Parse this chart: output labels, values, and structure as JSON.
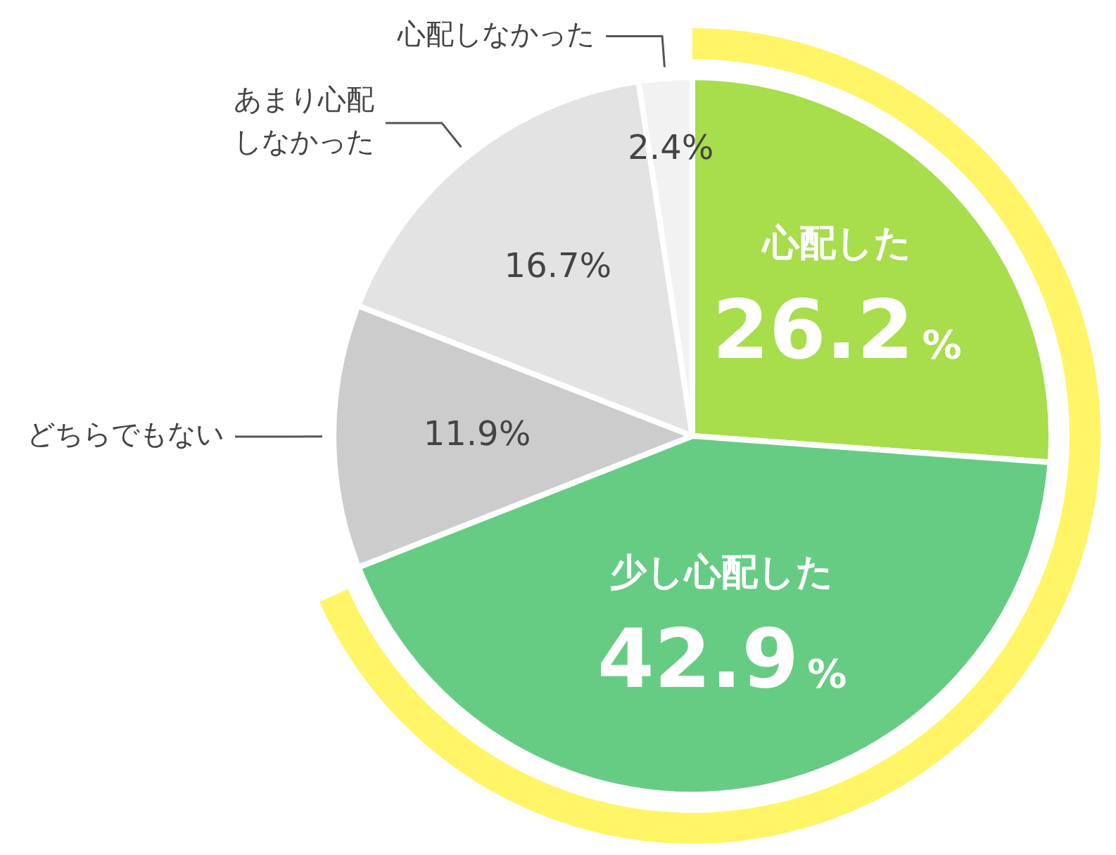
{
  "chart_data": {
    "type": "pie",
    "categories": [
      "心配した",
      "少し心配した",
      "どちらでもない",
      "あまり心配しなかった",
      "心配しなかった"
    ],
    "value_labels": [
      "26.2%",
      "42.9%",
      "11.9%",
      "16.7%",
      "2.4%"
    ],
    "values": [
      26.2,
      42.9,
      11.9,
      16.7,
      2.4
    ],
    "colors": [
      "#a8dd4b",
      "#66cc84",
      "#cccccc",
      "#e3e3e3",
      "#f2f2f2"
    ],
    "data_labels": true,
    "legend": false
  }
}
